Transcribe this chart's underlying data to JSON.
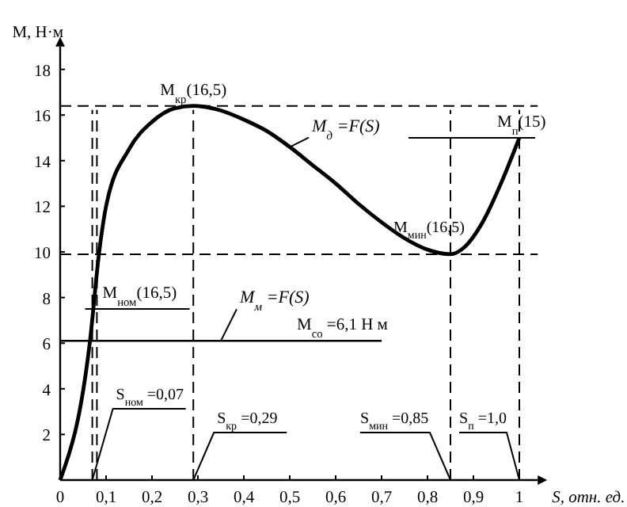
{
  "chart_data": {
    "type": "line",
    "xlabel": "S, отн. ед.",
    "ylabel": "M, Н·м",
    "xlim": [
      0,
      1.04
    ],
    "ylim": [
      0,
      19
    ],
    "xticks": [
      {
        "value": 0,
        "label": "0"
      },
      {
        "value": 0.1,
        "label": "0,1"
      },
      {
        "value": 0.2,
        "label": "0,2"
      },
      {
        "value": 0.3,
        "label": "0,3"
      },
      {
        "value": 0.4,
        "label": "0,4"
      },
      {
        "value": 0.5,
        "label": "0,5"
      },
      {
        "value": 0.6,
        "label": "0,6"
      },
      {
        "value": 0.7,
        "label": "0,7"
      },
      {
        "value": 0.8,
        "label": "0,8"
      },
      {
        "value": 0.9,
        "label": "0,9"
      },
      1
    ],
    "yticks": [
      {
        "value": 0,
        "label": null
      },
      2,
      4,
      6,
      8,
      10,
      12,
      14,
      16,
      18
    ],
    "series": [
      {
        "name": "M$_{д}$ =F(S)",
        "color": "#000000",
        "x": [
          0,
          0.065,
          0.085,
          0.1,
          0.15,
          0.2,
          0.25,
          0.29,
          0.35,
          0.4,
          0.45,
          0.5,
          0.55,
          0.6,
          0.65,
          0.7,
          0.75,
          0.8,
          0.85,
          0.88,
          0.92,
          0.96,
          1.0
        ],
        "values": [
          0,
          6.1,
          10,
          12,
          14.5,
          15.7,
          16.3,
          16.4,
          16.2,
          15.8,
          15.3,
          14.6,
          13.8,
          13.0,
          12.1,
          11.3,
          10.6,
          10.1,
          9.9,
          10.2,
          11.3,
          13.0,
          15
        ]
      },
      {
        "name": "M$_{м}$ =F(S)",
        "color": "#000000",
        "x": [
          0,
          0.7
        ],
        "values": [
          6.1,
          6.1
        ]
      }
    ],
    "ref_lines": [
      {
        "axis": "y",
        "value": 16.4,
        "line_style": "dashed"
      },
      {
        "axis": "y",
        "value": 9.9,
        "line_style": "dashed"
      },
      {
        "axis": "x",
        "value": 0.07,
        "line_style": "dashed"
      },
      {
        "axis": "x",
        "value": 0.08,
        "line_style": "dashed"
      },
      {
        "axis": "x",
        "value": 0.29,
        "line_style": "dashed"
      },
      {
        "axis": "x",
        "value": 0.85,
        "line_style": "dashed"
      },
      {
        "axis": "x",
        "value": 1.0,
        "line_style": "dashed"
      }
    ],
    "annotations": [
      {
        "text": "M$_{кр}$(16,5)",
        "x": 0.29,
        "y": 16.4
      },
      {
        "text": "M$_{мин}$(16,5)",
        "x": 0.85,
        "y": 9.9
      },
      {
        "text": "M$_{п}$(15)",
        "x": 1.0,
        "y": 15
      },
      {
        "text": "M$_{ном}$(16,5)",
        "x": 0.075,
        "y": 7.5
      },
      {
        "text": "M$_{со}$ =6,1 Н м",
        "x": 0.55,
        "y": 6.1
      },
      {
        "text": "S$_{ном}$ =0,07",
        "x": 0.07,
        "y": 0
      },
      {
        "text": "S$_{кр}$ =0,29",
        "x": 0.29,
        "y": 0
      },
      {
        "text": "S$_{мин}$ =0,85",
        "x": 0.85,
        "y": 0
      },
      {
        "text": "S$_{п}$ =1,0",
        "x": 1.0,
        "y": 0
      }
    ],
    "legend": false,
    "grid": false,
    "marker": "none",
    "line_style": "solid"
  }
}
